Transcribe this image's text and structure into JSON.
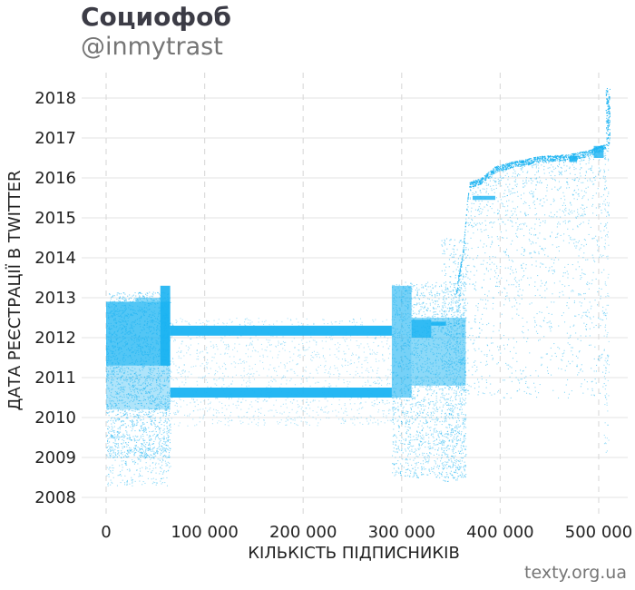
{
  "header": {
    "title": "Социофоб",
    "subtitle": "@inmytrast"
  },
  "credit": "texty.org.ua",
  "chart_data": {
    "type": "scatter",
    "title": "",
    "xlabel": "КІЛЬКІСТЬ ПІДПИСНИКІВ",
    "ylabel": "ДАТА РЕЄСТРАЦІЇ В TWITTER",
    "xlim": [
      -30000,
      530000
    ],
    "ylim": [
      2007.65,
      2018.35
    ],
    "x_ticks": [
      0,
      100000,
      200000,
      300000,
      400000,
      500000
    ],
    "x_tick_labels": [
      "0",
      "100 000",
      "200 000",
      "300 000",
      "400 000",
      "500 000"
    ],
    "y_ticks": [
      2008,
      2009,
      2010,
      2011,
      2012,
      2013,
      2014,
      2015,
      2016,
      2017,
      2018
    ],
    "y_tick_labels": [
      "2008",
      "2009",
      "2010",
      "2011",
      "2012",
      "2013",
      "2014",
      "2015",
      "2016",
      "2017",
      "2018"
    ],
    "grid_x": "dashed",
    "grid_y": "solid",
    "point_color": "#1ab3f2",
    "series": [
      {
        "description_regions": [
          {
            "x": [
              0,
              65000
            ],
            "y": [
              2008.3,
              2013.1
            ],
            "density": "dense, densest 2011.3–2012.9"
          },
          {
            "x": [
              55000,
              65000
            ],
            "y": [
              2011.3,
              2013.3
            ],
            "density": "solid block"
          },
          {
            "x": [
              65000,
              290000
            ],
            "y": [
              2012.05,
              2012.3
            ],
            "density": "solid band"
          },
          {
            "x": [
              65000,
              290000
            ],
            "y": [
              2010.5,
              2010.75
            ],
            "density": "solid band"
          },
          {
            "x": [
              65000,
              290000
            ],
            "y": [
              2009.8,
              2012.5
            ],
            "density": "sparse"
          },
          {
            "x": [
              290000,
              365000
            ],
            "y": [
              2008.4,
              2013.4
            ],
            "density": "dense"
          },
          {
            "x": [
              355000,
              510000
            ],
            "y": [
              2013.0,
              2016.9
            ],
            "density": "rising frontier, dense edge"
          },
          {
            "x": [
              505000,
              512000
            ],
            "y": [
              2016.8,
              2018.25
            ],
            "density": "vertical spike"
          }
        ]
      }
    ]
  }
}
